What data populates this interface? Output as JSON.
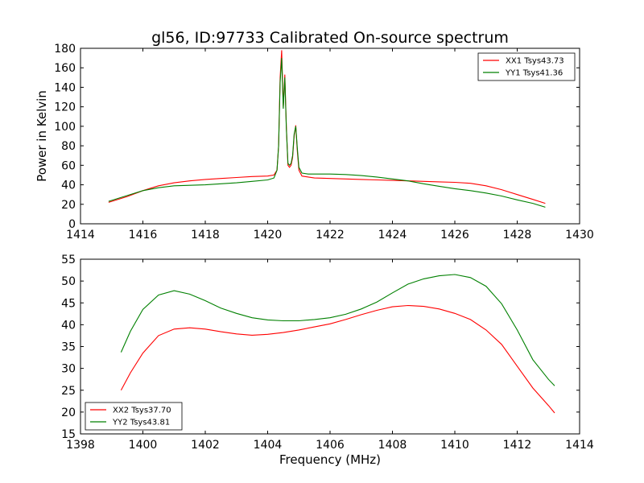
{
  "chart_data": [
    {
      "type": "line",
      "title": "gl56, ID:97733 Calibrated On-source spectrum",
      "xlabel": "",
      "ylabel": "Power in Kelvin",
      "xlim": [
        1414,
        1430
      ],
      "ylim": [
        0,
        180
      ],
      "xticks": [
        1414,
        1416,
        1418,
        1420,
        1422,
        1424,
        1426,
        1428,
        1430
      ],
      "yticks": [
        0,
        20,
        40,
        60,
        80,
        100,
        120,
        140,
        160,
        180
      ],
      "grid": false,
      "legend_position": "top-right",
      "series": [
        {
          "name": "XX1 Tsys43.73",
          "color": "#ff0000",
          "x": [
            1414.9,
            1415.5,
            1416.0,
            1416.5,
            1417.0,
            1417.5,
            1418.0,
            1418.5,
            1419.0,
            1419.5,
            1420.0,
            1420.2,
            1420.3,
            1420.35,
            1420.4,
            1420.45,
            1420.5,
            1420.55,
            1420.6,
            1420.65,
            1420.7,
            1420.75,
            1420.8,
            1420.85,
            1420.9,
            1420.95,
            1421.0,
            1421.1,
            1421.3,
            1421.5,
            1422.0,
            1422.5,
            1423.0,
            1423.5,
            1424.0,
            1424.5,
            1425.0,
            1425.5,
            1426.0,
            1426.5,
            1427.0,
            1427.5,
            1428.0,
            1428.5,
            1428.9
          ],
          "y": [
            22,
            28,
            34,
            39,
            42,
            44,
            45.5,
            46.5,
            47.5,
            48.5,
            49,
            50,
            55,
            80,
            150,
            178,
            120,
            153,
            100,
            60,
            58,
            60,
            68,
            90,
            101,
            75,
            55,
            49,
            48,
            47,
            46.5,
            46,
            45.5,
            45,
            44.5,
            44,
            43.5,
            43,
            42.5,
            41.5,
            39,
            35,
            30,
            25,
            21
          ]
        },
        {
          "name": "YY1 Tsys41.36",
          "color": "#008000",
          "x": [
            1414.9,
            1415.5,
            1416.0,
            1416.5,
            1417.0,
            1417.5,
            1418.0,
            1418.5,
            1419.0,
            1419.5,
            1420.0,
            1420.2,
            1420.3,
            1420.35,
            1420.4,
            1420.45,
            1420.5,
            1420.55,
            1420.6,
            1420.65,
            1420.7,
            1420.75,
            1420.8,
            1420.85,
            1420.9,
            1420.95,
            1421.0,
            1421.1,
            1421.3,
            1421.5,
            1422.0,
            1422.5,
            1423.0,
            1423.5,
            1424.0,
            1424.5,
            1425.0,
            1425.5,
            1426.0,
            1426.5,
            1427.0,
            1427.5,
            1428.0,
            1428.5,
            1428.9
          ],
          "y": [
            23,
            29,
            34,
            37,
            39,
            39.5,
            40,
            41,
            42,
            43.5,
            45,
            47,
            55,
            80,
            145,
            170,
            118,
            150,
            98,
            62,
            60,
            62,
            70,
            92,
            100,
            78,
            58,
            52,
            51,
            51,
            51,
            50.5,
            49.5,
            48,
            46,
            44,
            41,
            38.5,
            36,
            34,
            31.5,
            28.5,
            24.5,
            21,
            17
          ]
        }
      ]
    },
    {
      "type": "line",
      "title": "",
      "xlabel": "Frequency (MHz)",
      "ylabel": "",
      "xlim": [
        1398,
        1414
      ],
      "ylim": [
        15,
        55
      ],
      "xticks": [
        1398,
        1400,
        1402,
        1404,
        1406,
        1408,
        1410,
        1412,
        1414
      ],
      "yticks": [
        15,
        20,
        25,
        30,
        35,
        40,
        45,
        50,
        55
      ],
      "grid": false,
      "legend_position": "bottom-left",
      "series": [
        {
          "name": "XX2 Tsys37.70",
          "color": "#ff0000",
          "x": [
            1399.3,
            1399.6,
            1400.0,
            1400.5,
            1401.0,
            1401.5,
            1402.0,
            1402.5,
            1403.0,
            1403.5,
            1404.0,
            1404.5,
            1405.0,
            1405.5,
            1406.0,
            1406.5,
            1407.0,
            1407.5,
            1408.0,
            1408.5,
            1409.0,
            1409.5,
            1410.0,
            1410.5,
            1411.0,
            1411.5,
            1412.0,
            1412.5,
            1413.0,
            1413.2
          ],
          "y": [
            25,
            29,
            33.5,
            37.5,
            39,
            39.3,
            39,
            38.4,
            37.9,
            37.6,
            37.8,
            38.2,
            38.8,
            39.5,
            40.2,
            41.2,
            42.3,
            43.3,
            44.1,
            44.4,
            44.2,
            43.6,
            42.6,
            41.2,
            38.8,
            35.5,
            30.5,
            25.5,
            21.5,
            19.8
          ]
        },
        {
          "name": "YY2 Tsys43.81",
          "color": "#008000",
          "x": [
            1399.3,
            1399.6,
            1400.0,
            1400.5,
            1401.0,
            1401.5,
            1402.0,
            1402.5,
            1403.0,
            1403.5,
            1404.0,
            1404.5,
            1405.0,
            1405.5,
            1406.0,
            1406.5,
            1407.0,
            1407.5,
            1408.0,
            1408.5,
            1409.0,
            1409.5,
            1410.0,
            1410.5,
            1411.0,
            1411.5,
            1412.0,
            1412.5,
            1413.0,
            1413.2
          ],
          "y": [
            33.7,
            38.5,
            43.5,
            46.8,
            47.8,
            47,
            45.5,
            43.8,
            42.6,
            41.6,
            41.1,
            40.9,
            40.9,
            41.2,
            41.6,
            42.4,
            43.6,
            45.2,
            47.3,
            49.3,
            50.5,
            51.2,
            51.5,
            50.8,
            48.8,
            44.8,
            38.8,
            32,
            27.5,
            26
          ]
        }
      ]
    }
  ]
}
